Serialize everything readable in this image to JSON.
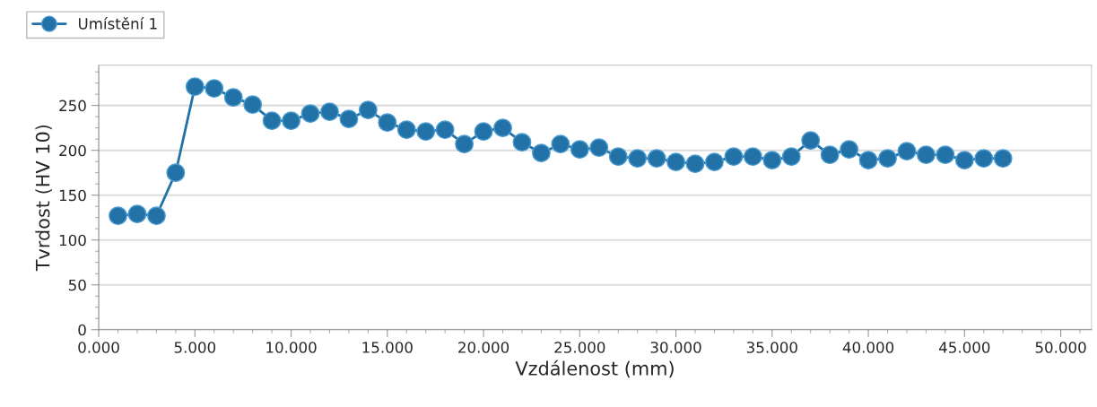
{
  "chart_data": {
    "type": "line",
    "xlabel": "Vzdálenost (mm)",
    "ylabel": "Tvrdost (HV 10)",
    "x": [
      1,
      2,
      3,
      4,
      5,
      6,
      7,
      8,
      9,
      10,
      11,
      12,
      13,
      14,
      15,
      16,
      17,
      18,
      19,
      20,
      21,
      22,
      23,
      24,
      25,
      26,
      27,
      28,
      29,
      30,
      31,
      32,
      33,
      34,
      35,
      36,
      37,
      38,
      39,
      40,
      41,
      42,
      43,
      44,
      45,
      46,
      47
    ],
    "series": [
      {
        "name": "Umístění 1",
        "color": "#2272a8",
        "values": [
          127,
          129,
          127,
          175,
          271,
          269,
          259,
          251,
          233,
          233,
          241,
          243,
          235,
          245,
          231,
          223,
          221,
          223,
          207,
          221,
          225,
          209,
          197,
          207,
          201,
          203,
          193,
          191,
          191,
          187,
          185,
          187,
          193,
          193,
          189,
          193,
          211,
          195,
          201,
          189,
          191,
          199,
          195,
          195,
          189,
          191,
          191
        ]
      }
    ],
    "xlim": [
      0,
      51.6
    ],
    "ylim": [
      0,
      295
    ],
    "xticks": [
      {
        "value": 0,
        "label": "0.000"
      },
      {
        "value": 5,
        "label": "5.000"
      },
      {
        "value": 10,
        "label": "10.000"
      },
      {
        "value": 15,
        "label": "15.000"
      },
      {
        "value": 20,
        "label": "20.000"
      },
      {
        "value": 25,
        "label": "25.000"
      },
      {
        "value": 30,
        "label": "30.000"
      },
      {
        "value": 35,
        "label": "35.000"
      },
      {
        "value": 40,
        "label": "40.000"
      },
      {
        "value": 45,
        "label": "45.000"
      },
      {
        "value": 50,
        "label": "50.000"
      }
    ],
    "yticks": [
      0,
      50,
      100,
      150,
      200,
      250
    ],
    "grid": "y",
    "legend": "top left",
    "marker": "circle",
    "line_style": "solid"
  }
}
